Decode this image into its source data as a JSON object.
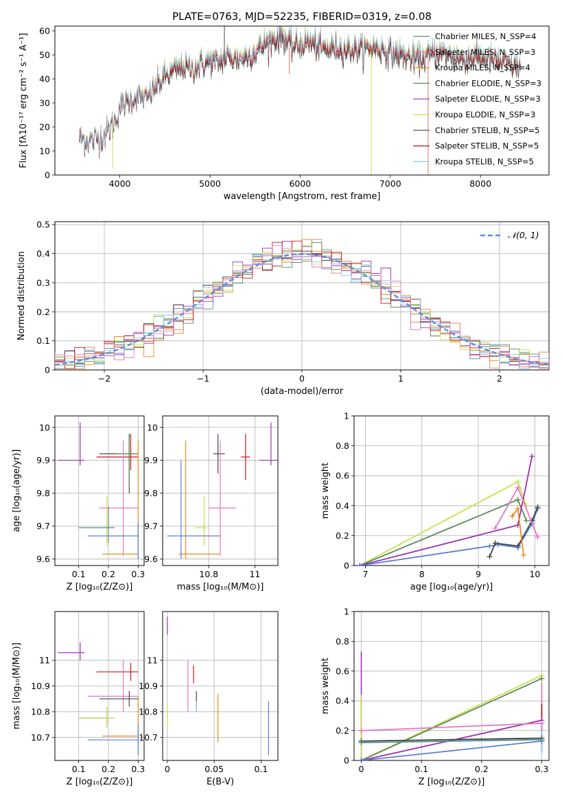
{
  "colors": {
    "C_MILES": "#4f8f8f",
    "S_MILES": "#e07a5f",
    "K_MILES": "#e88a1a",
    "C_ELODIE": "#5a8a5a",
    "S_ELODIE": "#9b30b0",
    "K_ELODIE": "#c8e04a",
    "C_STELIB": "#444444",
    "S_STELIB": "#cc1111",
    "K_STELIB": "#87cefa",
    "norm": "#5b8dd9",
    "pink": "#e377c2",
    "blue2": "#5b7fd6"
  },
  "chart_data": [
    {
      "id": "spectrum",
      "type": "line",
      "title": "PLATE=0763, MJD=52235, FIBERID=0319, z=0.08",
      "xlabel": "wavelength [Angstrom, rest frame]",
      "ylabel": "Flux [fλ10⁻¹⁷ erg cm⁻² s⁻¹ A⁻¹]",
      "xlim": [
        3280,
        8760
      ],
      "ylim": [
        0,
        62
      ],
      "xticks": [
        4000,
        5000,
        6000,
        7000,
        8000
      ],
      "yticks": [
        0,
        10,
        20,
        30,
        40,
        50,
        60
      ],
      "legend_loc": "upper right",
      "legend": [
        "Chabrier MILES, N_SSP=4",
        "Salpeter MILES, N_SSP=3",
        "Kroupa MILES, N_SSP=4",
        "Chabrier ELODIE, N_SSP=3",
        "Salpeter ELODIE, N_SSP=3",
        "Kroupa ELODIE, N_SSP=3",
        "Chabrier STELIB, N_SSP=5",
        "Salpeter STELIB, N_SSP=5",
        "Kroupa STELIB, N_SSP=5"
      ],
      "envelope": [
        [
          3550,
          15
        ],
        [
          3700,
          14
        ],
        [
          3850,
          17
        ],
        [
          3950,
          22
        ],
        [
          4000,
          28
        ],
        [
          4100,
          30
        ],
        [
          4200,
          32
        ],
        [
          4300,
          31
        ],
        [
          4400,
          36
        ],
        [
          4500,
          40
        ],
        [
          4600,
          42
        ],
        [
          4700,
          44
        ],
        [
          4800,
          43
        ],
        [
          4900,
          45
        ],
        [
          5000,
          46
        ],
        [
          5100,
          46
        ],
        [
          5200,
          48
        ],
        [
          5300,
          47
        ],
        [
          5400,
          48
        ],
        [
          5500,
          50
        ],
        [
          5600,
          53
        ],
        [
          5700,
          55
        ],
        [
          5800,
          57
        ],
        [
          5900,
          52
        ],
        [
          6000,
          53
        ],
        [
          6100,
          54
        ],
        [
          6200,
          52
        ],
        [
          6300,
          51
        ],
        [
          6400,
          52
        ],
        [
          6500,
          51
        ],
        [
          6600,
          51
        ],
        [
          6700,
          51
        ],
        [
          6800,
          52
        ],
        [
          6900,
          51
        ],
        [
          7000,
          50
        ],
        [
          7100,
          49
        ],
        [
          7200,
          48
        ],
        [
          7300,
          47
        ],
        [
          7400,
          48
        ],
        [
          7500,
          50
        ],
        [
          7600,
          49
        ],
        [
          7700,
          48
        ],
        [
          7800,
          47
        ],
        [
          7900,
          48
        ],
        [
          8000,
          48
        ],
        [
          8100,
          47
        ],
        [
          8200,
          46
        ],
        [
          8300,
          45
        ],
        [
          8400,
          44
        ],
        [
          8450,
          44
        ]
      ]
    },
    {
      "id": "residuals",
      "type": "histogram",
      "xlabel": "(data-model)/error",
      "ylabel": "Normed distribution",
      "xlim": [
        -2.5,
        2.5
      ],
      "ylim": [
        0,
        0.51
      ],
      "xticks": [
        -2,
        -1,
        0,
        1,
        2
      ],
      "yticks": [
        0.0,
        0.1,
        0.2,
        0.3,
        0.4,
        0.5
      ],
      "legend": [
        "𝒩(0, 1)"
      ],
      "legend_loc": "upper right",
      "bin_width": 0.1,
      "reference_curve": "normal(0,1)"
    },
    {
      "id": "age_vs_Z",
      "type": "scatter",
      "xlabel": "Z [log₁₀(Z/Z⊙)]",
      "ylabel": "age  [log₁₀(age/yr)]",
      "xlim": [
        0.02,
        0.32
      ],
      "ylim": [
        9.58,
        10.035
      ],
      "xticks": [
        0.1,
        0.2,
        0.3
      ],
      "yticks": [
        9.6,
        9.7,
        9.8,
        9.9,
        10.0
      ],
      "points": [
        {
          "c": "S_ELODIE",
          "x": 0.105,
          "y": 9.9,
          "xe": [
            0.03,
            0.12
          ],
          "ye": [
            9.885,
            10.015
          ]
        },
        {
          "c": "S_STELIB",
          "x": 0.275,
          "y": 9.91,
          "xe": [
            0.16,
            0.3
          ],
          "ye": [
            9.87,
            9.98
          ]
        },
        {
          "c": "C_STELIB",
          "x": 0.27,
          "y": 9.92,
          "xe": [
            0.17,
            0.3
          ],
          "ye": [
            9.8,
            9.98
          ]
        },
        {
          "c": "C_ELODIE",
          "x": 0.27,
          "y": 9.92,
          "xe": [
            0.23,
            0.3
          ],
          "ye": [
            9.82,
            9.97
          ]
        },
        {
          "c": "pink",
          "x": 0.25,
          "y": 9.755,
          "xe": [
            0.17,
            0.3
          ],
          "ye": [
            9.61,
            9.96
          ]
        },
        {
          "c": "K_ELODIE",
          "x": 0.195,
          "y": 9.695,
          "xe": [
            0.1,
            0.22
          ],
          "ye": [
            9.64,
            9.79
          ]
        },
        {
          "c": "K_MILES",
          "x": 0.3,
          "y": 9.615,
          "xe": [
            0.18,
            0.3
          ],
          "ye": [
            9.6,
            9.96
          ]
        },
        {
          "c": "blue2",
          "x": 0.3,
          "y": 9.67,
          "xe": [
            0.13,
            0.3
          ],
          "ye": [
            9.6,
            9.71
          ]
        },
        {
          "c": "C_MILES",
          "x": 0.2,
          "y": 9.695,
          "xe": [
            0.1,
            0.22
          ],
          "ye": [
            9.65,
            9.76
          ]
        }
      ]
    },
    {
      "id": "age_vs_mass",
      "type": "scatter",
      "xlabel": "mass [log₁₀(M/M⊙)]",
      "xlim": [
        10.6,
        11.1
      ],
      "ylim": [
        9.58,
        10.035
      ],
      "xticks": [
        10.8,
        11.0
      ],
      "yticks": [
        9.6,
        9.7,
        9.8,
        9.9,
        10.0
      ],
      "points": [
        {
          "c": "S_ELODIE",
          "x": 11.07,
          "y": 9.9,
          "xe": [
            11.02,
            11.1
          ],
          "ye": [
            9.885,
            10.015
          ]
        },
        {
          "c": "S_STELIB",
          "x": 10.96,
          "y": 9.91,
          "xe": [
            10.94,
            10.98
          ],
          "ye": [
            9.84,
            9.98
          ]
        },
        {
          "c": "C_STELIB",
          "x": 10.84,
          "y": 9.92,
          "xe": [
            10.82,
            10.87
          ],
          "ye": [
            9.86,
            9.98
          ]
        },
        {
          "c": "pink",
          "x": 10.85,
          "y": 9.755,
          "xe": [
            10.8,
            10.92
          ],
          "ye": [
            9.61,
            9.96
          ]
        },
        {
          "c": "K_ELODIE",
          "x": 10.78,
          "y": 9.695,
          "xe": [
            10.74,
            10.79
          ],
          "ye": [
            9.64,
            9.79
          ]
        },
        {
          "c": "K_MILES",
          "x": 10.7,
          "y": 9.615,
          "xe": [
            10.67,
            10.85
          ],
          "ye": [
            9.6,
            9.96
          ]
        },
        {
          "c": "blue2",
          "x": 10.68,
          "y": 9.67,
          "xe": [
            10.62,
            10.85
          ],
          "ye": [
            9.6,
            9.9
          ]
        }
      ]
    },
    {
      "id": "weight_vs_age",
      "type": "line",
      "xlabel": "age  [log₁₀(age/yr)]",
      "ylabel": "mass weight",
      "xlim": [
        6.8,
        10.25
      ],
      "ylim": [
        0,
        1.0
      ],
      "xticks": [
        7,
        8,
        9,
        10
      ],
      "yticks": [
        0.0,
        0.2,
        0.4,
        0.6,
        0.8,
        1.0
      ],
      "series": [
        {
          "c": "K_ELODIE",
          "x": [
            6.9,
            9.7,
            9.85
          ],
          "y": [
            0.0,
            0.56,
            0.4
          ]
        },
        {
          "c": "C_ELODIE",
          "x": [
            6.9,
            9.7,
            9.85
          ],
          "y": [
            0.0,
            0.44,
            0.3
          ]
        },
        {
          "c": "S_ELODIE",
          "x": [
            6.9,
            9.7,
            9.95
          ],
          "y": [
            0.0,
            0.27,
            0.73
          ]
        },
        {
          "c": "blue2",
          "x": [
            6.9,
            9.2,
            9.35,
            9.7,
            9.95,
            10.05
          ],
          "y": [
            0.0,
            0.13,
            0.14,
            0.12,
            0.28,
            0.38
          ]
        },
        {
          "c": "C_STELIB",
          "x": [
            9.2,
            9.3,
            9.7,
            9.95,
            10.05
          ],
          "y": [
            0.06,
            0.15,
            0.13,
            0.3,
            0.39
          ]
        },
        {
          "c": "pink",
          "x": [
            9.3,
            9.7,
            10.05
          ],
          "y": [
            0.25,
            0.52,
            0.19
          ]
        },
        {
          "c": "K_MILES",
          "x": [
            9.6,
            9.7,
            9.8
          ],
          "y": [
            0.33,
            0.38,
            0.07
          ]
        }
      ]
    },
    {
      "id": "mass_vs_Z",
      "type": "scatter",
      "xlabel": "Z [log₁₀(Z/Z⊙)]",
      "ylabel": "mass [log₁₀(M/M⊙)]",
      "xlim": [
        0.02,
        0.32
      ],
      "ylim": [
        10.61,
        11.19
      ],
      "xticks": [
        0.1,
        0.2,
        0.3
      ],
      "yticks": [
        10.7,
        10.8,
        10.9,
        11.0
      ],
      "points": [
        {
          "c": "S_ELODIE",
          "x": 0.105,
          "y": 11.03,
          "xe": [
            0.03,
            0.12
          ],
          "ye": [
            11.0,
            11.07
          ]
        },
        {
          "c": "S_STELIB",
          "x": 0.275,
          "y": 10.955,
          "xe": [
            0.16,
            0.3
          ],
          "ye": [
            10.92,
            10.99
          ]
        },
        {
          "c": "pink",
          "x": 0.25,
          "y": 10.86,
          "xe": [
            0.13,
            0.3
          ],
          "ye": [
            10.8,
            11.0
          ]
        },
        {
          "c": "C_STELIB",
          "x": 0.27,
          "y": 10.85,
          "xe": [
            0.17,
            0.3
          ],
          "ye": [
            10.82,
            10.88
          ]
        },
        {
          "c": "C_ELODIE",
          "x": 0.195,
          "y": 10.775,
          "xe": [
            0.1,
            0.22
          ],
          "ye": [
            10.74,
            10.82
          ]
        },
        {
          "c": "K_ELODIE",
          "x": 0.195,
          "y": 10.775,
          "xe": [
            0.1,
            0.22
          ],
          "ye": [
            10.74,
            10.82
          ]
        },
        {
          "c": "K_MILES",
          "x": 0.3,
          "y": 10.705,
          "xe": [
            0.18,
            0.3
          ],
          "ye": [
            10.67,
            10.86
          ]
        },
        {
          "c": "blue2",
          "x": 0.3,
          "y": 10.69,
          "xe": [
            0.13,
            0.3
          ],
          "ye": [
            10.63,
            10.75
          ]
        }
      ]
    },
    {
      "id": "mass_vs_ebv",
      "type": "scatter",
      "xlabel": "E(B-V)",
      "xlim": [
        -0.005,
        0.118
      ],
      "ylim": [
        10.61,
        11.19
      ],
      "xticks": [
        0.0,
        0.05,
        0.1
      ],
      "yticks": [
        10.7,
        10.8,
        10.9,
        11.0
      ],
      "points": [
        {
          "c": "S_ELODIE",
          "x": 0.0,
          "y": 11.13,
          "xe": [
            0.0,
            0.0
          ],
          "ye": [
            11.1,
            11.17
          ]
        },
        {
          "c": "K_ELODIE",
          "x": 0.0,
          "y": 10.78,
          "xe": [
            0.0,
            0.0
          ],
          "ye": [
            10.74,
            10.83
          ]
        },
        {
          "c": "pink",
          "x": 0.022,
          "y": 10.86,
          "xe": [
            0.022,
            0.022
          ],
          "ye": [
            10.8,
            11.0
          ]
        },
        {
          "c": "S_STELIB",
          "x": 0.028,
          "y": 10.95,
          "xe": [
            0.028,
            0.028
          ],
          "ye": [
            10.91,
            10.98
          ]
        },
        {
          "c": "C_STELIB",
          "x": 0.031,
          "y": 10.85,
          "xe": [
            0.031,
            0.031
          ],
          "ye": [
            10.8,
            10.88
          ]
        },
        {
          "c": "K_STELIB",
          "x": 0.031,
          "y": 10.82,
          "xe": [
            0.031,
            0.031
          ],
          "ye": [
            10.8,
            10.84
          ]
        },
        {
          "c": "K_MILES",
          "x": 0.054,
          "y": 10.78,
          "xe": [
            0.054,
            0.054
          ],
          "ye": [
            10.68,
            10.87
          ]
        },
        {
          "c": "blue2",
          "x": 0.108,
          "y": 10.73,
          "xe": [
            0.108,
            0.108
          ],
          "ye": [
            10.63,
            10.84
          ]
        }
      ]
    },
    {
      "id": "weight_vs_Z",
      "type": "line",
      "xlabel": "Z [log₁₀(Z/Z⊙)]",
      "ylabel": "mass weight",
      "xlim": [
        -0.012,
        0.312
      ],
      "ylim": [
        0,
        1.0
      ],
      "xticks": [
        0.0,
        0.1,
        0.2,
        0.3
      ],
      "yticks": [
        0.0,
        0.2,
        0.4,
        0.6,
        0.8,
        1.0
      ],
      "series": [
        {
          "c": "K_ELODIE",
          "x": [
            0.0,
            0.3
          ],
          "y": [
            0.0,
            0.57
          ]
        },
        {
          "c": "C_ELODIE",
          "x": [
            0.0,
            0.3
          ],
          "y": [
            0.0,
            0.55
          ]
        },
        {
          "c": "S_ELODIE",
          "x": [
            0.0,
            0.3
          ],
          "y": [
            0.0,
            0.27
          ]
        },
        {
          "c": "pink",
          "x": [
            0.0,
            0.3
          ],
          "y": [
            0.2,
            0.25
          ]
        },
        {
          "c": "blue2",
          "x": [
            0.0,
            0.3
          ],
          "y": [
            0.0,
            0.13
          ]
        },
        {
          "c": "C_STELIB",
          "x": [
            0.0,
            0.3
          ],
          "y": [
            0.13,
            0.15
          ]
        },
        {
          "c": "C_MILES",
          "x": [
            0.0,
            0.3
          ],
          "y": [
            0.12,
            0.14
          ]
        }
      ],
      "stems": [
        {
          "c": "S_ELODIE",
          "x": 0.0,
          "y": [
            0.0,
            0.73
          ]
        },
        {
          "c": "K_ELODIE",
          "x": 0.0,
          "y": [
            0.0,
            0.44
          ]
        },
        {
          "c": "C_STELIB",
          "x": 0.3,
          "y": [
            0.06,
            0.4
          ]
        },
        {
          "c": "K_ELODIE",
          "x": 0.3,
          "y": [
            0.3,
            0.56
          ]
        },
        {
          "c": "pink",
          "x": 0.3,
          "y": [
            0.2,
            0.52
          ]
        },
        {
          "c": "S_STELIB",
          "x": 0.3,
          "y": [
            0.28,
            0.38
          ]
        },
        {
          "c": "K_STELIB",
          "x": 0.3,
          "y": [
            0.04,
            0.2
          ]
        }
      ]
    }
  ]
}
